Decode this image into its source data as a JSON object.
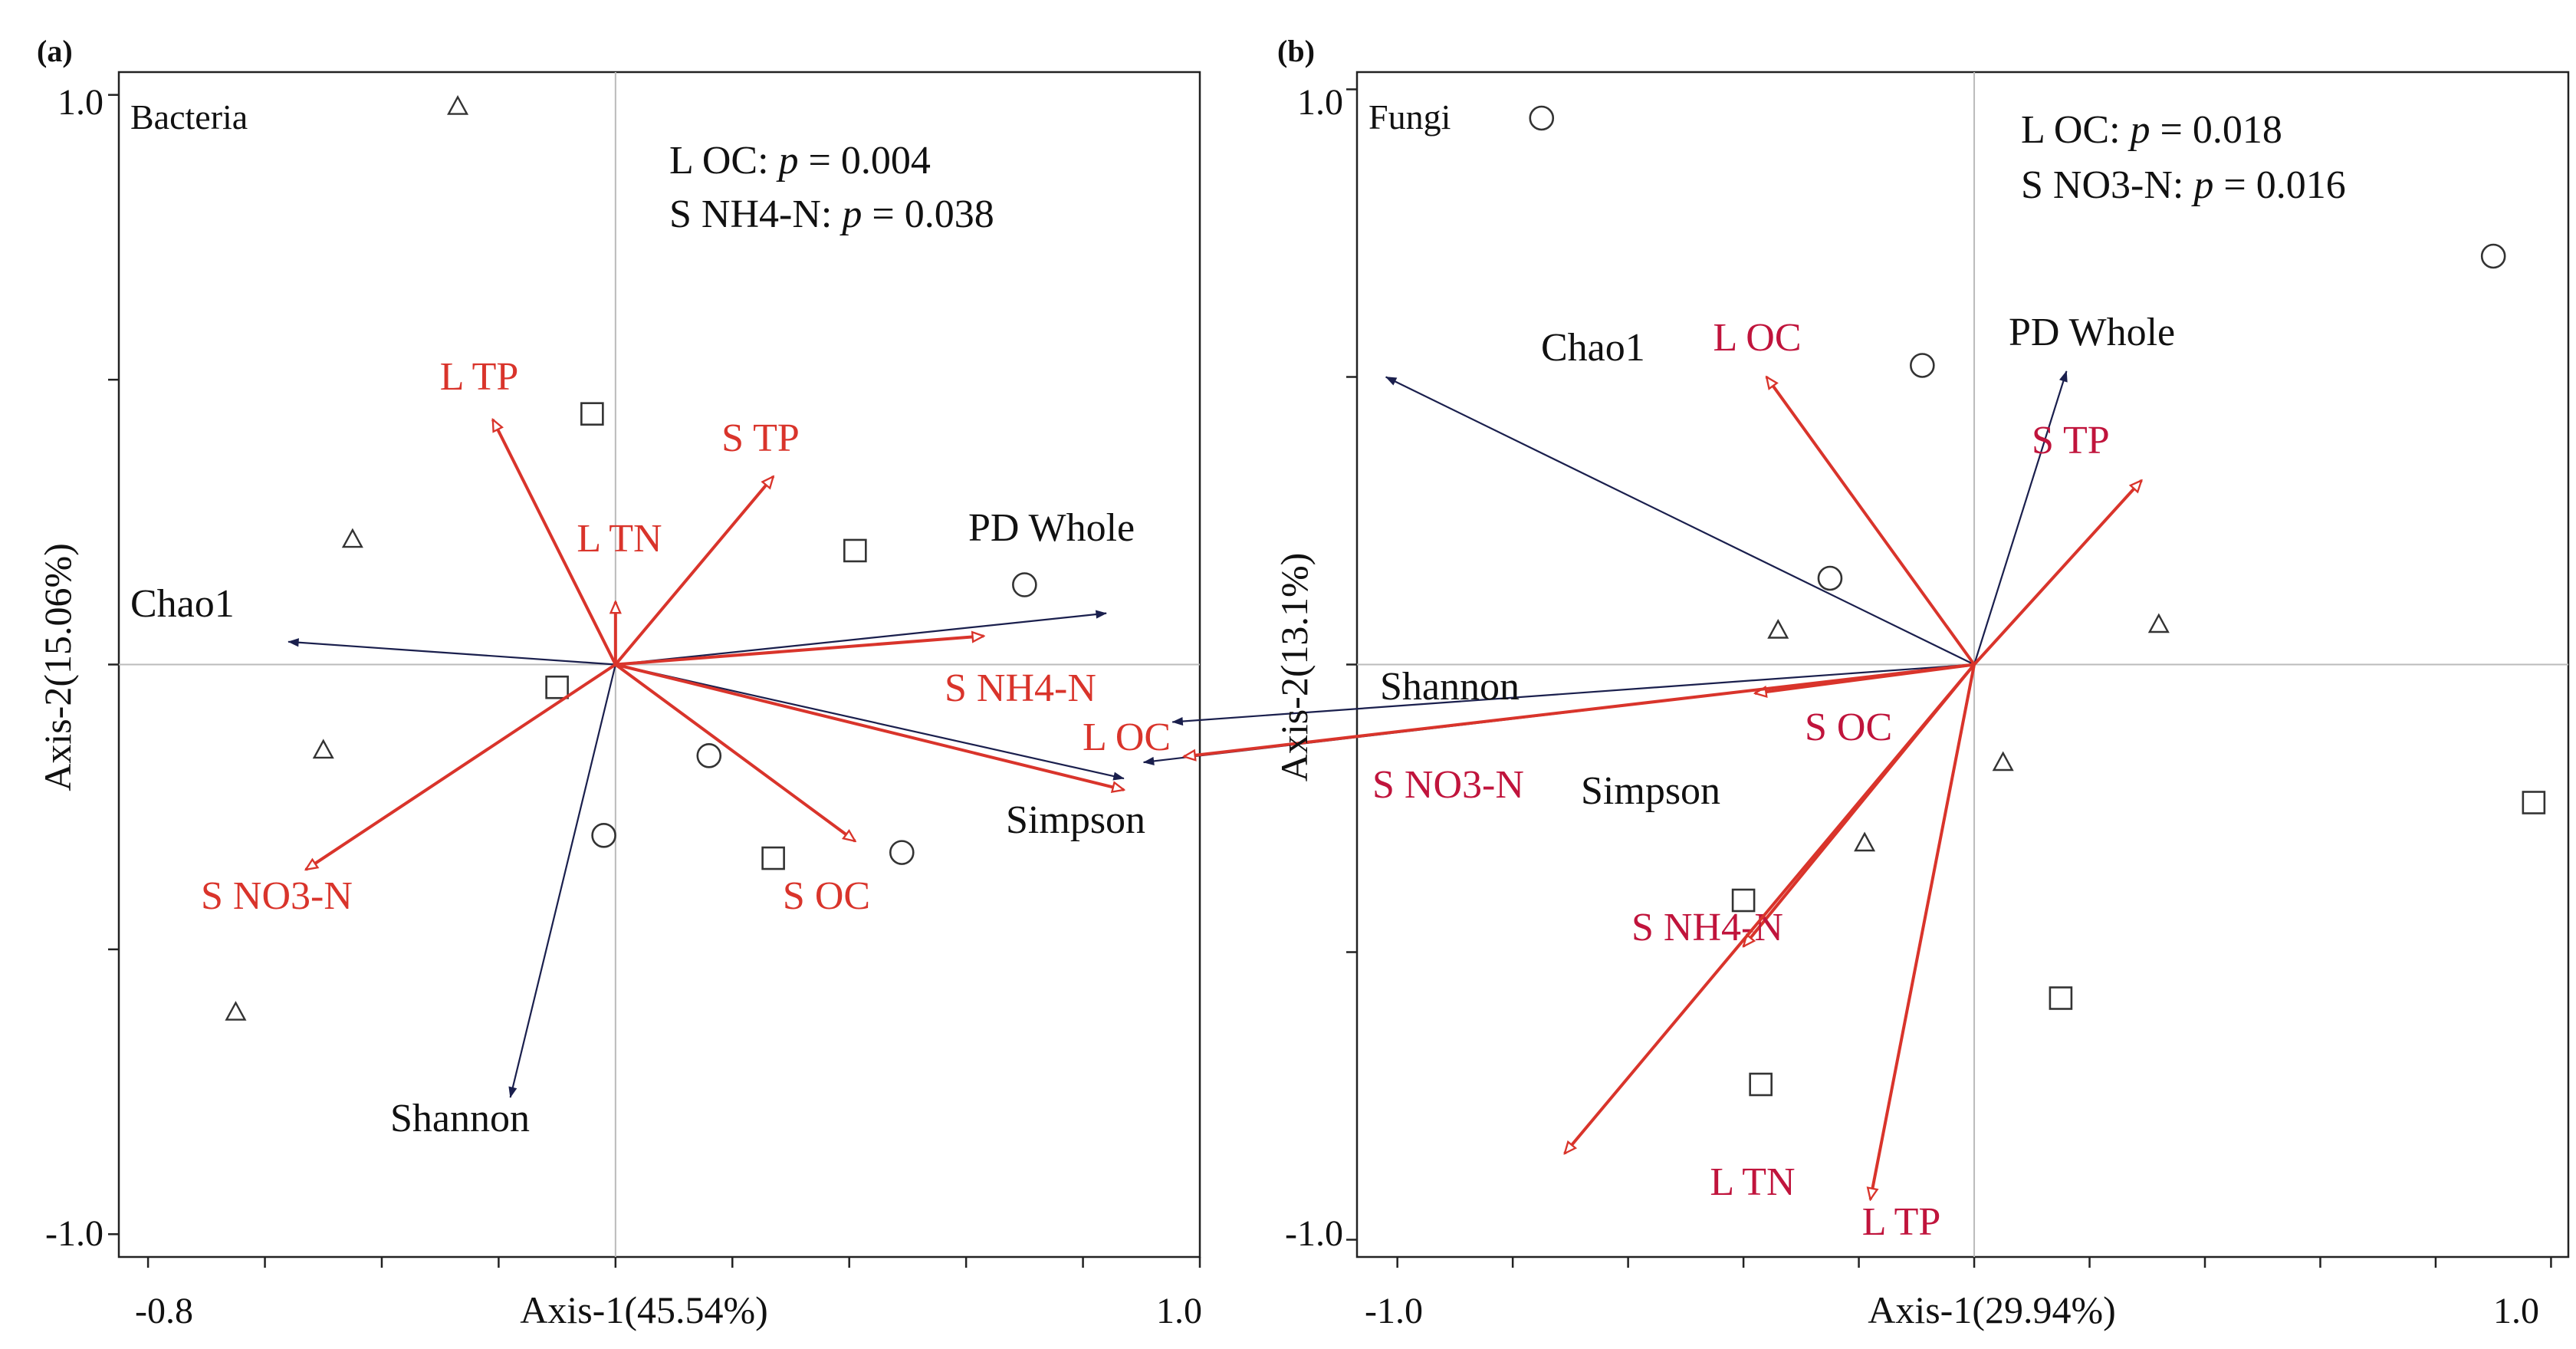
{
  "chart_data": [
    {
      "type": "scatter",
      "panel_label": "(a)",
      "group_label": "Bacteria",
      "xlabel": "Axis-1(45.54%)",
      "ylabel": "Axis-2(15.06%)",
      "xlim": [
        -0.85,
        1.0
      ],
      "ylim": [
        -1.04,
        1.04
      ],
      "x_tick_labels": [
        {
          "value": -0.8,
          "label": "-0.8"
        },
        {
          "value": 1.0,
          "label": "1.0"
        }
      ],
      "y_tick_labels": [
        {
          "value": 1.0,
          "label": "1.0"
        },
        {
          "value": -1.0,
          "label": "-1.0"
        }
      ],
      "significance": [
        {
          "name": "L OC",
          "p": "0.004"
        },
        {
          "name": "S NH4-N",
          "p": "0.038"
        }
      ],
      "env_vectors": [
        {
          "label": "L TP",
          "x": -0.21,
          "y": 0.43
        },
        {
          "label": "S TP",
          "x": 0.27,
          "y": 0.33
        },
        {
          "label": "L TN",
          "x": 0.0,
          "y": 0.11
        },
        {
          "label": "S NH4-N",
          "x": 0.63,
          "y": 0.05
        },
        {
          "label": "L OC",
          "x": 0.87,
          "y": -0.22
        },
        {
          "label": "S OC",
          "x": 0.41,
          "y": -0.31
        },
        {
          "label": "S NO3-N",
          "x": -0.53,
          "y": -0.36
        }
      ],
      "div_vectors": [
        {
          "label": "PD Whole",
          "x": 0.84,
          "y": 0.09
        },
        {
          "label": "Chao1",
          "x": -0.56,
          "y": 0.04
        },
        {
          "label": "Simpson",
          "x": 0.87,
          "y": -0.2
        },
        {
          "label": "Shannon",
          "x": -0.18,
          "y": -0.76
        }
      ],
      "samples": [
        {
          "shape": "triangle",
          "x": -0.27,
          "y": 0.98
        },
        {
          "shape": "triangle",
          "x": -0.45,
          "y": 0.22
        },
        {
          "shape": "triangle",
          "x": -0.5,
          "y": -0.15
        },
        {
          "shape": "triangle",
          "x": -0.65,
          "y": -0.61
        },
        {
          "shape": "square",
          "x": -0.04,
          "y": 0.44
        },
        {
          "shape": "square",
          "x": 0.41,
          "y": 0.2
        },
        {
          "shape": "square",
          "x": -0.1,
          "y": -0.04
        },
        {
          "shape": "square",
          "x": 0.27,
          "y": -0.34
        },
        {
          "shape": "circle",
          "x": 0.7,
          "y": 0.14
        },
        {
          "shape": "circle",
          "x": 0.16,
          "y": -0.16
        },
        {
          "shape": "circle",
          "x": -0.02,
          "y": -0.3
        },
        {
          "shape": "circle",
          "x": 0.49,
          "y": -0.33
        }
      ]
    },
    {
      "type": "scatter",
      "panel_label": "(b)",
      "group_label": "Fungi",
      "xlabel": "Axis-1(29.94%)",
      "ylabel": "Axis-2(13.1%)",
      "xlim": [
        -1.07,
        1.03
      ],
      "ylim": [
        -1.03,
        1.03
      ],
      "x_tick_labels": [
        {
          "value": -1.0,
          "label": "-1.0"
        },
        {
          "value": 1.0,
          "label": "1.0"
        }
      ],
      "y_tick_labels": [
        {
          "value": 1.0,
          "label": "1.0"
        },
        {
          "value": -1.0,
          "label": "-1.0"
        }
      ],
      "significance": [
        {
          "name": "L OC",
          "p": "0.018"
        },
        {
          "name": "S NO3-N",
          "p": "0.016"
        }
      ],
      "env_vectors": [
        {
          "label": "L OC",
          "x": -0.36,
          "y": 0.5
        },
        {
          "label": "S TP",
          "x": 0.29,
          "y": 0.32
        },
        {
          "label": "S OC",
          "x": -0.38,
          "y": -0.05
        },
        {
          "label": "S NO3-N",
          "x": -1.37,
          "y": -0.16
        },
        {
          "label": "S NH4-N",
          "x": -0.4,
          "y": -0.49
        },
        {
          "label": "L TN",
          "x": -0.71,
          "y": -0.85
        },
        {
          "label": "L TP",
          "x": -0.18,
          "y": -0.93
        }
      ],
      "div_vectors": [
        {
          "label": "PD Whole",
          "x": 0.16,
          "y": 0.51
        },
        {
          "label": "Chao1",
          "x": -1.02,
          "y": 0.5
        },
        {
          "label": "Shannon",
          "x": -1.39,
          "y": -0.1
        },
        {
          "label": "Simpson",
          "x": -1.44,
          "y": -0.17
        }
      ],
      "samples": [
        {
          "shape": "circle",
          "x": -0.75,
          "y": 0.95
        },
        {
          "shape": "circle",
          "x": 0.9,
          "y": 0.71
        },
        {
          "shape": "circle",
          "x": -0.09,
          "y": 0.52
        },
        {
          "shape": "circle",
          "x": -0.25,
          "y": 0.15
        },
        {
          "shape": "triangle",
          "x": -0.34,
          "y": 0.06
        },
        {
          "shape": "triangle",
          "x": 0.32,
          "y": 0.07
        },
        {
          "shape": "triangle",
          "x": 0.05,
          "y": -0.17
        },
        {
          "shape": "triangle",
          "x": -0.19,
          "y": -0.31
        },
        {
          "shape": "square",
          "x": 0.97,
          "y": -0.24
        },
        {
          "shape": "square",
          "x": -0.4,
          "y": -0.41
        },
        {
          "shape": "square",
          "x": 0.15,
          "y": -0.58
        },
        {
          "shape": "square",
          "x": -0.37,
          "y": -0.73
        }
      ]
    }
  ]
}
